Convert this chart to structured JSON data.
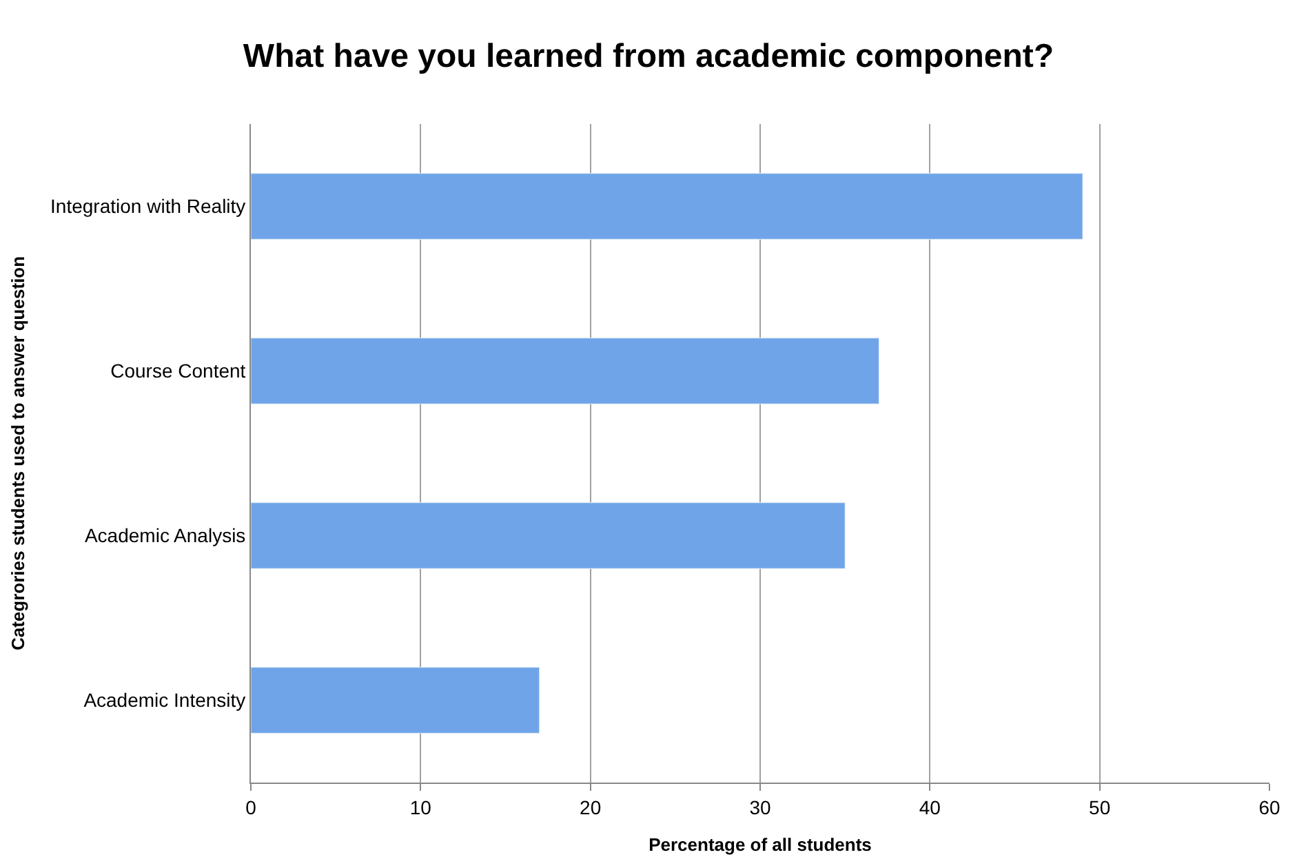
{
  "chart_data": {
    "type": "bar",
    "orientation": "horizontal",
    "title": "What have you learned from academic component?",
    "xlabel": "Percentage of all students",
    "ylabel": "Categrories students used to answer question",
    "categories": [
      "Integration with Reality",
      "Course Content",
      "Academic Analysis",
      "Academic Intensity"
    ],
    "values": [
      49,
      37,
      35,
      17
    ],
    "color": "#6fa5e8",
    "xlim": [
      0,
      60
    ],
    "xticks": [
      0,
      10,
      20,
      30,
      40,
      50,
      60
    ],
    "grid": "x"
  }
}
